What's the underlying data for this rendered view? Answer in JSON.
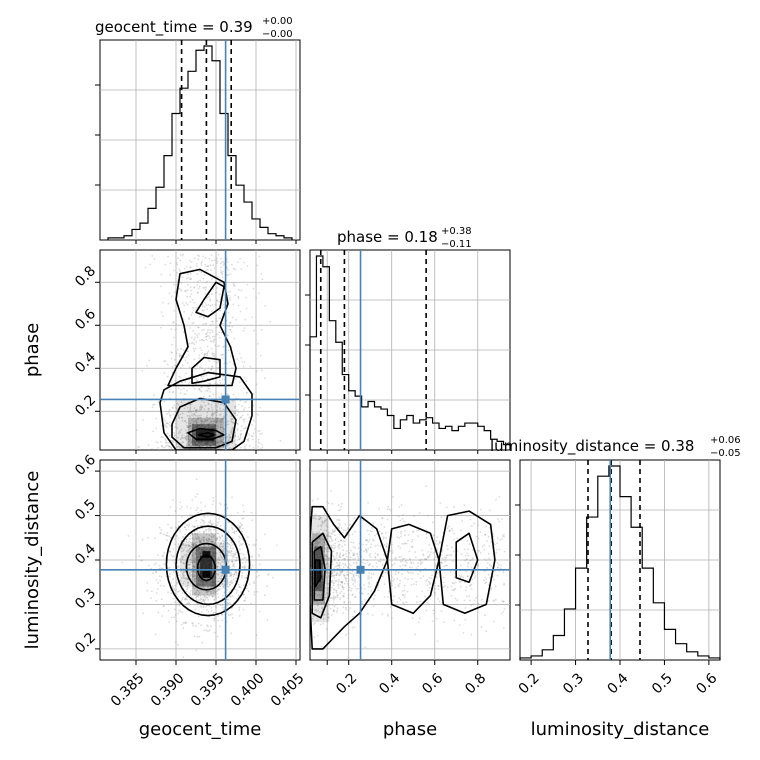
{
  "chart_data": {
    "type": "corner",
    "parameters": [
      "geocent_time",
      "phase",
      "luminosity_distance"
    ],
    "truths": {
      "geocent_time": 0.3962,
      "phase": 0.255,
      "luminosity_distance": 0.378
    },
    "colors": {
      "truth": "#4682b4",
      "hist": "#000000",
      "grid": "#b0b0b0",
      "points": "#9a9a9a"
    },
    "grid": true,
    "titles": [
      {
        "param": "geocent_time",
        "main": "geocent_time = 0.39",
        "sup": "+0.00",
        "sub": "−0.00"
      },
      {
        "param": "phase",
        "main": "phase = 0.18",
        "sup": "+0.38",
        "sub": "−0.11"
      },
      {
        "param": "luminosity_distance",
        "main": "luminosity_distance = 0.38",
        "sup": "+0.06",
        "sub": "−0.05"
      }
    ],
    "axes": {
      "geocent_time": {
        "range": [
          0.3805,
          0.4055
        ],
        "ticks": [
          0.385,
          0.39,
          0.395,
          0.4,
          0.405
        ],
        "tick_labels": [
          "0.385",
          "0.390",
          "0.395",
          "0.400",
          "0.405"
        ]
      },
      "phase": {
        "range": [
          0.02,
          0.95
        ],
        "ticks": [
          0.1,
          0.2,
          0.4,
          0.6,
          0.8
        ],
        "tick_labels_x": [
          "",
          "0.2",
          "0.4",
          "0.6",
          "0.8"
        ],
        "tick_labels_y": [
          "0.2",
          "0.4",
          "0.6",
          "0.8"
        ],
        "y_ticks": [
          0.2,
          0.4,
          0.6,
          0.8
        ]
      },
      "luminosity_distance": {
        "range": [
          0.175,
          0.625
        ],
        "ticks": [
          0.2,
          0.3,
          0.4,
          0.5,
          0.6
        ],
        "tick_labels": [
          "0.2",
          "0.3",
          "0.4",
          "0.5",
          "0.6"
        ]
      }
    },
    "histograms": {
      "geocent_time": {
        "bin_edges": [
          0.3815,
          0.3825,
          0.3835,
          0.3845,
          0.3855,
          0.3865,
          0.3875,
          0.3885,
          0.3895,
          0.3905,
          0.3915,
          0.3925,
          0.3935,
          0.3945,
          0.3955,
          0.3965,
          0.3975,
          0.3985,
          0.3995,
          0.4005,
          0.4015,
          0.4025,
          0.4035,
          0.4045
        ],
        "counts": [
          1,
          1,
          2,
          5,
          8,
          15,
          25,
          40,
          60,
          72,
          80,
          90,
          92,
          85,
          60,
          40,
          26,
          18,
          10,
          6,
          3,
          2,
          1
        ],
        "quantiles": [
          0.3907,
          0.3938,
          0.3969
        ]
      },
      "phase": {
        "bin_edges": [
          0.02,
          0.05,
          0.08,
          0.11,
          0.14,
          0.17,
          0.2,
          0.23,
          0.26,
          0.29,
          0.32,
          0.35,
          0.38,
          0.41,
          0.44,
          0.47,
          0.5,
          0.53,
          0.56,
          0.59,
          0.62,
          0.65,
          0.68,
          0.71,
          0.74,
          0.77,
          0.8,
          0.83,
          0.86,
          0.89,
          0.92,
          0.95
        ],
        "counts": [
          105,
          180,
          170,
          120,
          100,
          70,
          55,
          50,
          40,
          45,
          40,
          38,
          32,
          20,
          28,
          32,
          25,
          28,
          30,
          25,
          20,
          22,
          18,
          22,
          25,
          25,
          22,
          18,
          10,
          8,
          5
        ],
        "quantiles": [
          0.07,
          0.18,
          0.56
        ]
      },
      "luminosity_distance": {
        "bin_edges": [
          0.175,
          0.2,
          0.225,
          0.25,
          0.275,
          0.3,
          0.325,
          0.35,
          0.375,
          0.4,
          0.425,
          0.45,
          0.475,
          0.5,
          0.525,
          0.55,
          0.575,
          0.6,
          0.625
        ],
        "counts": [
          1,
          2,
          5,
          12,
          25,
          45,
          70,
          90,
          95,
          80,
          65,
          45,
          28,
          15,
          8,
          4,
          2,
          1
        ],
        "quantiles": [
          0.328,
          0.38,
          0.445
        ]
      }
    }
  },
  "axis_labels": {
    "geocent_time": "geocent_time",
    "phase": "phase",
    "luminosity_distance": "luminosity_distance",
    "phase_y": "phase",
    "luminosity_distance_y": "luminosity_distance"
  }
}
